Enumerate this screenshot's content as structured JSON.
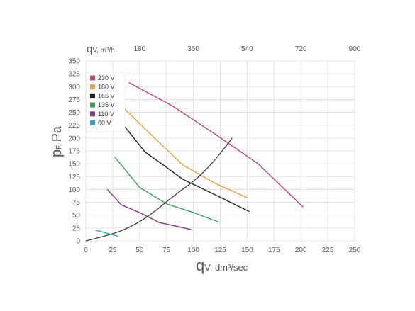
{
  "chart_data": {
    "type": "line",
    "x_bottom": {
      "label_main": "q",
      "label_sub": "V, dm³/sec",
      "min": 0,
      "max": 250,
      "ticks": [
        "0",
        "25",
        "50",
        "75",
        "100",
        "125",
        "150",
        "175",
        "200",
        "225",
        "250"
      ]
    },
    "x_top": {
      "label_main": "q",
      "label_sub": "V, m³/h",
      "ticks": [
        "180",
        "360",
        "540",
        "720",
        "900"
      ]
    },
    "y": {
      "label_main": "p",
      "label_sub": "F,",
      "label_unit": "Pa",
      "min": 0,
      "max": 350,
      "ticks": [
        "0",
        "25",
        "50",
        "75",
        "100",
        "125",
        "150",
        "175",
        "200",
        "225",
        "250",
        "275",
        "300",
        "325",
        "350"
      ]
    },
    "grid": true,
    "legend_position": "top-left",
    "series": [
      {
        "name": "230 V",
        "color": "#c2417f",
        "points": [
          [
            40,
            308
          ],
          [
            80,
            263
          ],
          [
            120,
            208
          ],
          [
            160,
            150
          ],
          [
            202,
            66
          ]
        ]
      },
      {
        "name": "180 V",
        "color": "#e3a23b",
        "points": [
          [
            33,
            263
          ],
          [
            50,
            228
          ],
          [
            70,
            188
          ],
          [
            90,
            148
          ],
          [
            120,
            112
          ],
          [
            150,
            84
          ]
        ]
      },
      {
        "name": "165 V",
        "color": "#222222",
        "points": [
          [
            35,
            225
          ],
          [
            55,
            173
          ],
          [
            75,
            143
          ],
          [
            90,
            120
          ],
          [
            120,
            90
          ],
          [
            152,
            57
          ]
        ]
      },
      {
        "name": "135 V",
        "color": "#3aa05a",
        "points": [
          [
            27,
            163
          ],
          [
            50,
            104
          ],
          [
            75,
            72
          ],
          [
            100,
            55
          ],
          [
            123,
            37
          ]
        ]
      },
      {
        "name": "110 V",
        "color": "#7a3a82",
        "points": [
          [
            20,
            100
          ],
          [
            33,
            70
          ],
          [
            50,
            55
          ],
          [
            68,
            36
          ],
          [
            98,
            22
          ]
        ]
      },
      {
        "name": "60 V",
        "color": "#2aa7c9",
        "points": [
          [
            9,
            21
          ],
          [
            30,
            9
          ]
        ]
      }
    ],
    "system_curve": {
      "color": "#333333",
      "points": [
        [
          0,
          0
        ],
        [
          20,
          10
        ],
        [
          40,
          25
        ],
        [
          60,
          50
        ],
        [
          80,
          85
        ],
        [
          100,
          115
        ],
        [
          115,
          145
        ],
        [
          127,
          175
        ],
        [
          136,
          200
        ]
      ]
    }
  }
}
